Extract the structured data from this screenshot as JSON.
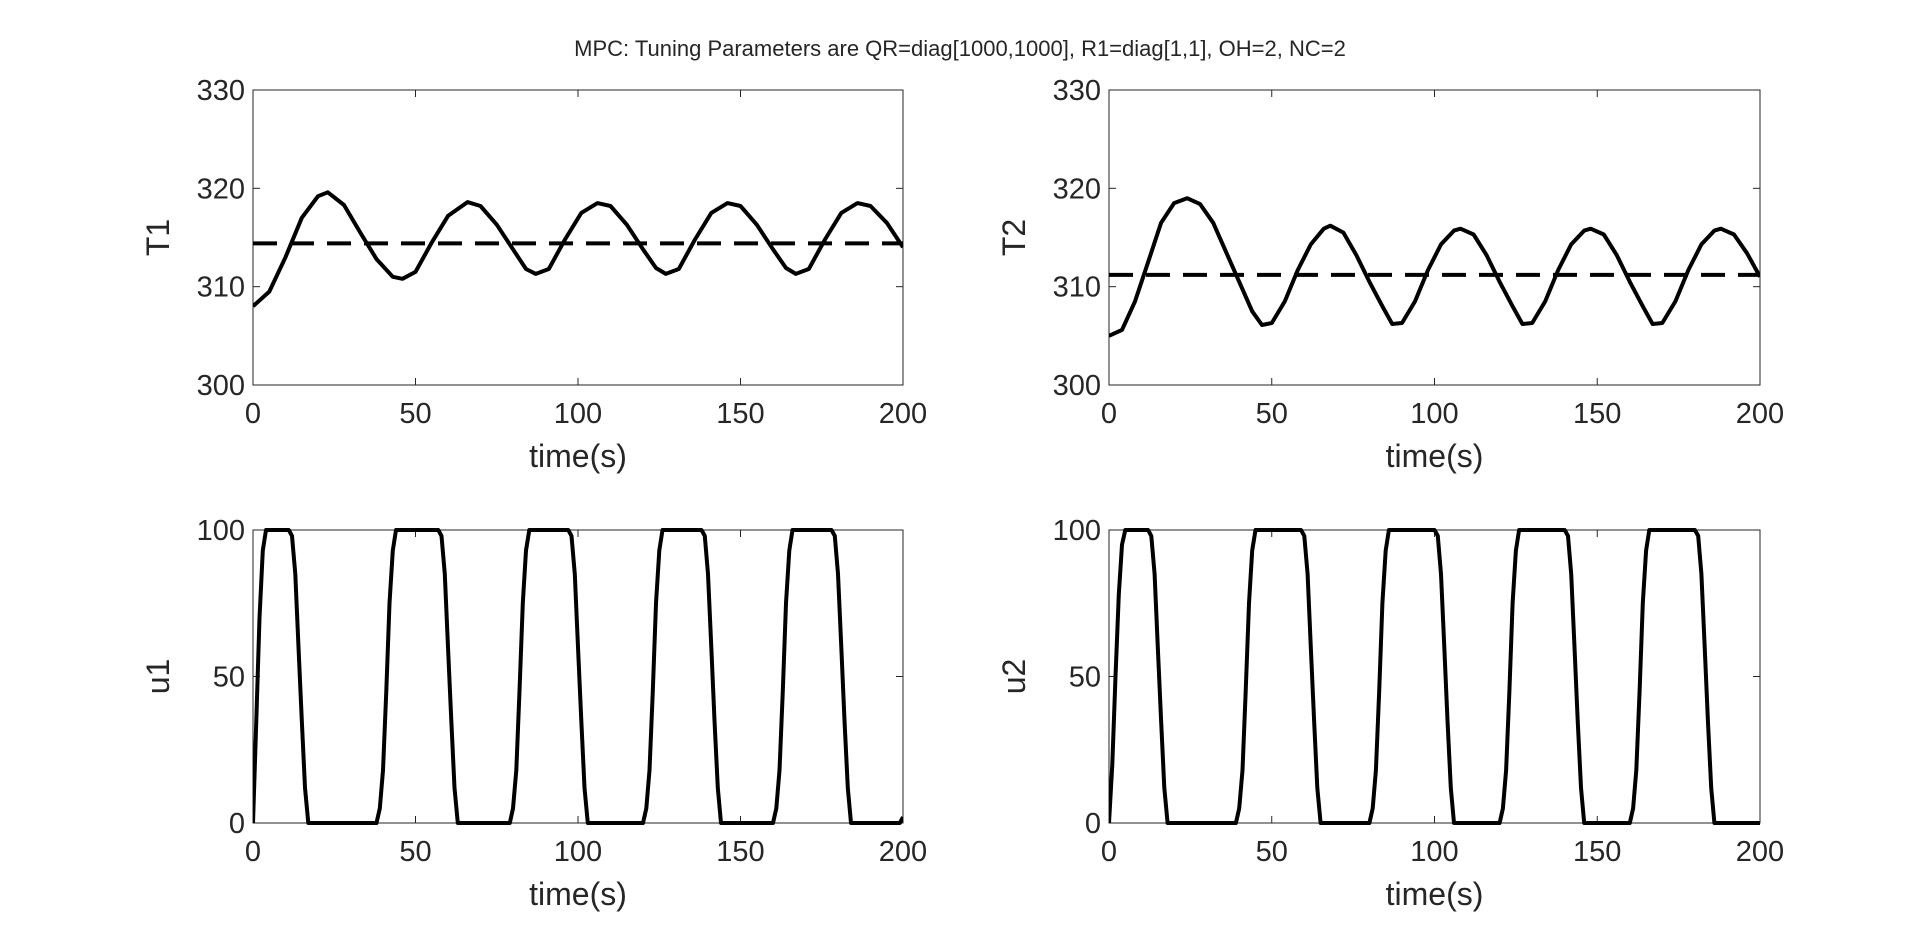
{
  "figure": {
    "title": "MPC: Tuning Parameters are QR=diag[1000,1000],  R1=diag[1,1],  OH=2,  NC=2",
    "background": "#ffffff",
    "line_color": "#000000",
    "axes_color": "#262626"
  },
  "chart_data": [
    {
      "type": "line",
      "position": "top-left",
      "xlabel": "time(s)",
      "ylabel": "T1",
      "xlim": [
        0,
        200
      ],
      "ylim": [
        300,
        330
      ],
      "xticks": [
        0,
        50,
        100,
        150,
        200
      ],
      "yticks": [
        300,
        310,
        320,
        330
      ],
      "grid": false,
      "series": [
        {
          "style": "solid",
          "points": [
            [
              0,
              308
            ],
            [
              5,
              309.5
            ],
            [
              10,
              313
            ],
            [
              15,
              317
            ],
            [
              20,
              319.2
            ],
            [
              23,
              319.6
            ],
            [
              28,
              318.3
            ],
            [
              33,
              315.5
            ],
            [
              38,
              312.8
            ],
            [
              43,
              311
            ],
            [
              46,
              310.8
            ],
            [
              50,
              311.5
            ],
            [
              55,
              314.5
            ],
            [
              60,
              317.2
            ],
            [
              66,
              318.6
            ],
            [
              70,
              318.2
            ],
            [
              75,
              316.3
            ],
            [
              80,
              313.8
            ],
            [
              84,
              311.8
            ],
            [
              87,
              311.3
            ],
            [
              91,
              311.8
            ],
            [
              96,
              314.8
            ],
            [
              101,
              317.5
            ],
            [
              106,
              318.5
            ],
            [
              110,
              318.2
            ],
            [
              115,
              316.3
            ],
            [
              120,
              313.8
            ],
            [
              124,
              311.9
            ],
            [
              127,
              311.3
            ],
            [
              131,
              311.8
            ],
            [
              136,
              314.8
            ],
            [
              141,
              317.5
            ],
            [
              146,
              318.5
            ],
            [
              150,
              318.2
            ],
            [
              155,
              316.3
            ],
            [
              160,
              313.8
            ],
            [
              164,
              311.9
            ],
            [
              167,
              311.3
            ],
            [
              171,
              311.8
            ],
            [
              176,
              314.8
            ],
            [
              181,
              317.5
            ],
            [
              186,
              318.5
            ],
            [
              190,
              318.2
            ],
            [
              195,
              316.5
            ],
            [
              200,
              314
            ]
          ]
        },
        {
          "style": "dashed",
          "points": [
            [
              0,
              314.4
            ],
            [
              200,
              314.4
            ]
          ]
        }
      ]
    },
    {
      "type": "line",
      "position": "top-right",
      "xlabel": "time(s)",
      "ylabel": "T2",
      "xlim": [
        0,
        200
      ],
      "ylim": [
        300,
        330
      ],
      "xticks": [
        0,
        50,
        100,
        150,
        200
      ],
      "yticks": [
        300,
        310,
        320,
        330
      ],
      "grid": false,
      "series": [
        {
          "style": "solid",
          "points": [
            [
              0,
              305
            ],
            [
              4,
              305.6
            ],
            [
              8,
              308.5
            ],
            [
              12,
              312.5
            ],
            [
              16,
              316.5
            ],
            [
              20,
              318.5
            ],
            [
              24,
              319
            ],
            [
              28,
              318.4
            ],
            [
              32,
              316.5
            ],
            [
              36,
              313.5
            ],
            [
              40,
              310.5
            ],
            [
              44,
              307.5
            ],
            [
              47,
              306.1
            ],
            [
              50,
              306.3
            ],
            [
              54,
              308.5
            ],
            [
              58,
              311.7
            ],
            [
              62,
              314.3
            ],
            [
              66,
              315.9
            ],
            [
              68,
              316.2
            ],
            [
              72,
              315.5
            ],
            [
              76,
              313.2
            ],
            [
              80,
              310.5
            ],
            [
              84,
              308
            ],
            [
              87,
              306.2
            ],
            [
              90,
              306.3
            ],
            [
              94,
              308.5
            ],
            [
              98,
              311.7
            ],
            [
              102,
              314.3
            ],
            [
              106,
              315.7
            ],
            [
              108,
              315.9
            ],
            [
              112,
              315.3
            ],
            [
              116,
              313.2
            ],
            [
              120,
              310.5
            ],
            [
              124,
              308
            ],
            [
              127,
              306.2
            ],
            [
              130,
              306.3
            ],
            [
              134,
              308.5
            ],
            [
              138,
              311.7
            ],
            [
              142,
              314.3
            ],
            [
              146,
              315.7
            ],
            [
              148,
              315.9
            ],
            [
              152,
              315.3
            ],
            [
              156,
              313.2
            ],
            [
              160,
              310.5
            ],
            [
              164,
              308
            ],
            [
              167,
              306.2
            ],
            [
              170,
              306.3
            ],
            [
              174,
              308.5
            ],
            [
              178,
              311.7
            ],
            [
              182,
              314.3
            ],
            [
              186,
              315.7
            ],
            [
              188,
              315.9
            ],
            [
              192,
              315.3
            ],
            [
              196,
              313.4
            ],
            [
              200,
              311
            ]
          ]
        },
        {
          "style": "dashed",
          "points": [
            [
              0,
              311.2
            ],
            [
              200,
              311.2
            ]
          ]
        }
      ]
    },
    {
      "type": "line",
      "position": "bottom-left",
      "xlabel": "time(s)",
      "ylabel": "u1",
      "xlim": [
        0,
        200
      ],
      "ylim": [
        0,
        100
      ],
      "xticks": [
        0,
        50,
        100,
        150,
        200
      ],
      "yticks": [
        0,
        50,
        100
      ],
      "grid": false,
      "series": [
        {
          "style": "solid",
          "points": [
            [
              0,
              0
            ],
            [
              1,
              35
            ],
            [
              2,
              70
            ],
            [
              3,
              93
            ],
            [
              4,
              100
            ],
            [
              11,
              100
            ],
            [
              12,
              98
            ],
            [
              13,
              85
            ],
            [
              14,
              60
            ],
            [
              15,
              35
            ],
            [
              16,
              12
            ],
            [
              17,
              0
            ],
            [
              38,
              0
            ],
            [
              39,
              5
            ],
            [
              40,
              18
            ],
            [
              41,
              45
            ],
            [
              42,
              75
            ],
            [
              43,
              93
            ],
            [
              44,
              100
            ],
            [
              57,
              100
            ],
            [
              58,
              98
            ],
            [
              59,
              85
            ],
            [
              60,
              60
            ],
            [
              61,
              35
            ],
            [
              62,
              12
            ],
            [
              63,
              0
            ],
            [
              79,
              0
            ],
            [
              80,
              5
            ],
            [
              81,
              18
            ],
            [
              82,
              45
            ],
            [
              83,
              75
            ],
            [
              84,
              93
            ],
            [
              85,
              100
            ],
            [
              97,
              100
            ],
            [
              98,
              98
            ],
            [
              99,
              85
            ],
            [
              100,
              60
            ],
            [
              101,
              35
            ],
            [
              102,
              12
            ],
            [
              103,
              0
            ],
            [
              120,
              0
            ],
            [
              121,
              5
            ],
            [
              122,
              18
            ],
            [
              123,
              45
            ],
            [
              124,
              75
            ],
            [
              125,
              93
            ],
            [
              126,
              100
            ],
            [
              138,
              100
            ],
            [
              139,
              98
            ],
            [
              140,
              85
            ],
            [
              141,
              60
            ],
            [
              142,
              35
            ],
            [
              143,
              12
            ],
            [
              144,
              0
            ],
            [
              160,
              0
            ],
            [
              161,
              5
            ],
            [
              162,
              18
            ],
            [
              163,
              45
            ],
            [
              164,
              75
            ],
            [
              165,
              93
            ],
            [
              166,
              100
            ],
            [
              178,
              100
            ],
            [
              179,
              98
            ],
            [
              180,
              85
            ],
            [
              181,
              60
            ],
            [
              182,
              35
            ],
            [
              183,
              12
            ],
            [
              184,
              0
            ],
            [
              199,
              0
            ],
            [
              200,
              2
            ]
          ]
        }
      ]
    },
    {
      "type": "line",
      "position": "bottom-right",
      "xlabel": "time(s)",
      "ylabel": "u2",
      "xlim": [
        0,
        200
      ],
      "ylim": [
        0,
        100
      ],
      "xticks": [
        0,
        50,
        100,
        150,
        200
      ],
      "yticks": [
        0,
        50,
        100
      ],
      "grid": false,
      "series": [
        {
          "style": "solid",
          "points": [
            [
              0,
              0
            ],
            [
              1,
              20
            ],
            [
              2,
              50
            ],
            [
              3,
              78
            ],
            [
              4,
              95
            ],
            [
              5,
              100
            ],
            [
              12,
              100
            ],
            [
              13,
              98
            ],
            [
              14,
              85
            ],
            [
              15,
              60
            ],
            [
              16,
              35
            ],
            [
              17,
              12
            ],
            [
              18,
              0
            ],
            [
              39,
              0
            ],
            [
              40,
              5
            ],
            [
              41,
              18
            ],
            [
              42,
              45
            ],
            [
              43,
              75
            ],
            [
              44,
              93
            ],
            [
              45,
              100
            ],
            [
              59,
              100
            ],
            [
              60,
              98
            ],
            [
              61,
              85
            ],
            [
              62,
              60
            ],
            [
              63,
              35
            ],
            [
              64,
              12
            ],
            [
              65,
              0
            ],
            [
              80,
              0
            ],
            [
              81,
              5
            ],
            [
              82,
              18
            ],
            [
              83,
              45
            ],
            [
              84,
              75
            ],
            [
              85,
              93
            ],
            [
              86,
              100
            ],
            [
              100,
              100
            ],
            [
              101,
              98
            ],
            [
              102,
              85
            ],
            [
              103,
              60
            ],
            [
              104,
              35
            ],
            [
              105,
              12
            ],
            [
              106,
              0
            ],
            [
              120,
              0
            ],
            [
              121,
              5
            ],
            [
              122,
              18
            ],
            [
              123,
              45
            ],
            [
              124,
              75
            ],
            [
              125,
              93
            ],
            [
              126,
              100
            ],
            [
              140,
              100
            ],
            [
              141,
              98
            ],
            [
              142,
              85
            ],
            [
              143,
              60
            ],
            [
              144,
              35
            ],
            [
              145,
              12
            ],
            [
              146,
              0
            ],
            [
              160,
              0
            ],
            [
              161,
              5
            ],
            [
              162,
              18
            ],
            [
              163,
              45
            ],
            [
              164,
              75
            ],
            [
              165,
              93
            ],
            [
              166,
              100
            ],
            [
              180,
              100
            ],
            [
              181,
              98
            ],
            [
              182,
              85
            ],
            [
              183,
              60
            ],
            [
              184,
              35
            ],
            [
              185,
              12
            ],
            [
              186,
              0
            ],
            [
              200,
              0
            ]
          ]
        }
      ]
    }
  ]
}
